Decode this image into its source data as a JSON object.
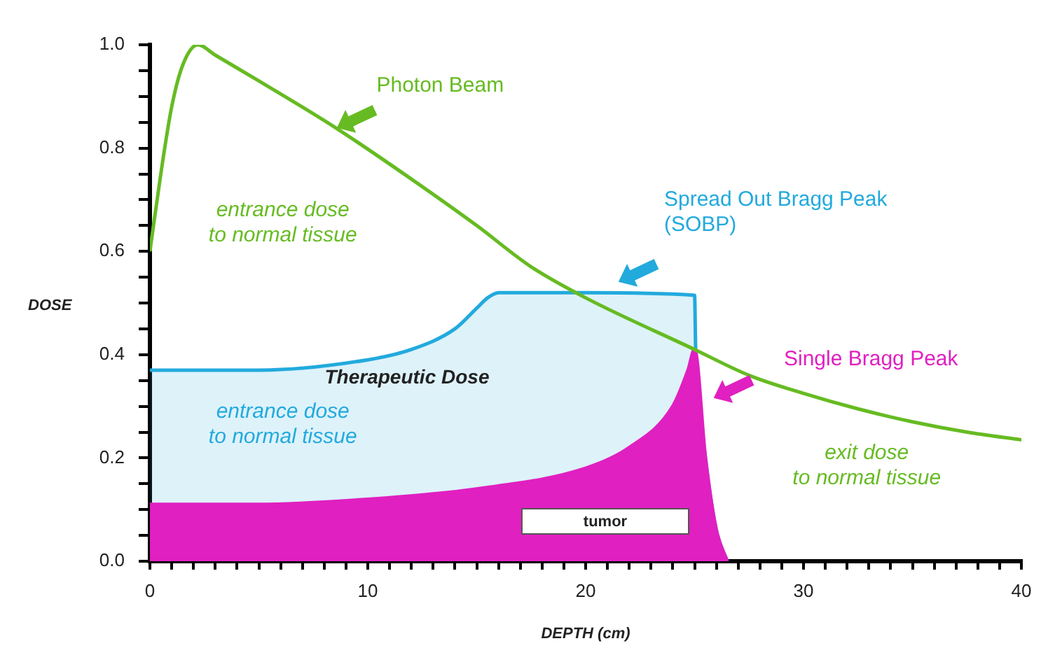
{
  "chart_data": {
    "type": "line",
    "xlabel": "DEPTH (cm)",
    "ylabel": "DOSE",
    "xlim": [
      0,
      40
    ],
    "xticks": [
      0,
      10,
      20,
      30,
      40,
      {
        "value": 1,
        "label": null
      },
      {
        "value": 2,
        "label": null
      },
      {
        "value": 3,
        "label": null
      },
      {
        "value": 4,
        "label": null
      },
      {
        "value": 5,
        "label": null
      },
      {
        "value": 6,
        "label": null
      },
      {
        "value": 7,
        "label": null
      },
      {
        "value": 8,
        "label": null
      },
      {
        "value": 9,
        "label": null
      },
      {
        "value": 11,
        "label": null
      },
      {
        "value": 12,
        "label": null
      },
      {
        "value": 13,
        "label": null
      },
      {
        "value": 14,
        "label": null
      },
      {
        "value": 15,
        "label": null
      },
      {
        "value": 16,
        "label": null
      },
      {
        "value": 17,
        "label": null
      },
      {
        "value": 18,
        "label": null
      },
      {
        "value": 19,
        "label": null
      },
      {
        "value": 21,
        "label": null
      },
      {
        "value": 22,
        "label": null
      },
      {
        "value": 23,
        "label": null
      },
      {
        "value": 24,
        "label": null
      },
      {
        "value": 25,
        "label": null
      },
      {
        "value": 26,
        "label": null
      },
      {
        "value": 27,
        "label": null
      },
      {
        "value": 28,
        "label": null
      },
      {
        "value": 29,
        "label": null
      },
      {
        "value": 31,
        "label": null
      },
      {
        "value": 32,
        "label": null
      },
      {
        "value": 33,
        "label": null
      },
      {
        "value": 34,
        "label": null
      },
      {
        "value": 35,
        "label": null
      },
      {
        "value": 36,
        "label": null
      },
      {
        "value": 37,
        "label": null
      },
      {
        "value": 38,
        "label": null
      },
      {
        "value": 39,
        "label": null
      }
    ],
    "ylim": [
      0,
      1
    ],
    "yticks": [
      {
        "value": 0,
        "label": "0.0"
      },
      {
        "value": 0.2,
        "label": "0.2"
      },
      {
        "value": 0.4,
        "label": "0.4"
      },
      {
        "value": 0.6,
        "label": "0.6"
      },
      {
        "value": 0.8,
        "label": "0.8"
      },
      {
        "value": 1,
        "label": "1.0"
      },
      {
        "value": 0.05,
        "label": null
      },
      {
        "value": 0.1,
        "label": null
      },
      {
        "value": 0.15,
        "label": null
      },
      {
        "value": 0.25,
        "label": null
      },
      {
        "value": 0.3,
        "label": null
      },
      {
        "value": 0.35,
        "label": null
      },
      {
        "value": 0.45,
        "label": null
      },
      {
        "value": 0.5,
        "label": null
      },
      {
        "value": 0.55,
        "label": null
      },
      {
        "value": 0.65,
        "label": null
      },
      {
        "value": 0.7,
        "label": null
      },
      {
        "value": 0.75,
        "label": null
      },
      {
        "value": 0.85,
        "label": null
      },
      {
        "value": 0.9,
        "label": null
      },
      {
        "value": 0.95,
        "label": null
      }
    ],
    "grid": false,
    "legend": false,
    "marker": "none",
    "line_style": "solid",
    "series": [
      {
        "name": "Photon Beam",
        "type": "line",
        "color": "#66bb22",
        "x": [
          0,
          0.5,
          1,
          1.5,
          2.2,
          3,
          5,
          8.5,
          12,
          15,
          17.5,
          20,
          25,
          27.5,
          30,
          32.5,
          35,
          37.5,
          40
        ],
        "values": [
          0.6,
          0.75,
          0.88,
          0.96,
          1.0,
          0.98,
          0.93,
          0.84,
          0.74,
          0.65,
          0.57,
          0.51,
          0.41,
          0.36,
          0.325,
          0.295,
          0.27,
          0.25,
          0.235
        ]
      },
      {
        "name": "Single Bragg Peak",
        "type": "area",
        "color": "#e020c0",
        "x": [
          0,
          5,
          10,
          15,
          20,
          22,
          24,
          24.7,
          25,
          25.5,
          26,
          26.5
        ],
        "values": [
          0.11,
          0.11,
          0.12,
          0.14,
          0.18,
          0.22,
          0.3,
          0.37,
          0.41,
          0.2,
          0.06,
          0
        ]
      },
      {
        "name": "Spread Out Bragg Peak (SOBP)",
        "type": "area",
        "color": "#22aadd",
        "x": [
          0,
          5,
          10,
          12,
          14,
          15,
          15.5,
          16,
          20,
          25,
          25.05,
          25.5,
          26,
          26.5
        ],
        "values": [
          0.37,
          0.37,
          0.39,
          0.41,
          0.45,
          0.49,
          0.51,
          0.52,
          0.52,
          0.515,
          0.41,
          0.2,
          0.06,
          0
        ]
      }
    ],
    "annotations": [
      "entrance dose\nto normal tissue",
      "entrance dose\nto normal tissue",
      "Therapeutic Dose",
      "exit dose\nto normal tissue",
      "tumor"
    ]
  }
}
